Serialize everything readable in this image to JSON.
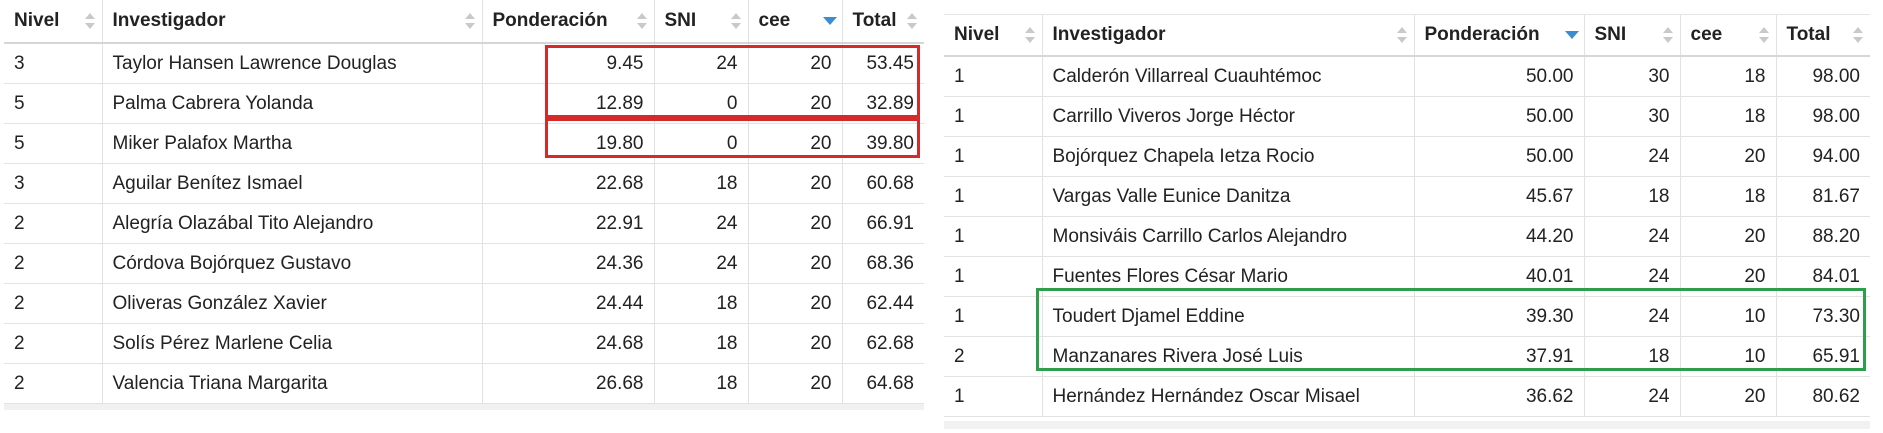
{
  "left_table": {
    "columns": [
      {
        "label": "Nivel",
        "sort": "none"
      },
      {
        "label": "Investigador",
        "sort": "none"
      },
      {
        "label": "Ponderación",
        "sort": "none"
      },
      {
        "label": "SNI",
        "sort": "none"
      },
      {
        "label": "cee",
        "sort": "desc"
      },
      {
        "label": "Total",
        "sort": "none"
      }
    ],
    "rows": [
      {
        "nivel": "3",
        "investigador": "Taylor Hansen Lawrence Douglas",
        "ponderacion": "9.45",
        "sni": "24",
        "cee": "20",
        "total": "53.45"
      },
      {
        "nivel": "5",
        "investigador": "Palma Cabrera Yolanda",
        "ponderacion": "12.89",
        "sni": "0",
        "cee": "20",
        "total": "32.89"
      },
      {
        "nivel": "5",
        "investigador": "Miker Palafox Martha",
        "ponderacion": "19.80",
        "sni": "0",
        "cee": "20",
        "total": "39.80"
      },
      {
        "nivel": "3",
        "investigador": "Aguilar Benítez Ismael",
        "ponderacion": "22.68",
        "sni": "18",
        "cee": "20",
        "total": "60.68"
      },
      {
        "nivel": "2",
        "investigador": "Alegría Olazábal Tito Alejandro",
        "ponderacion": "22.91",
        "sni": "24",
        "cee": "20",
        "total": "66.91"
      },
      {
        "nivel": "2",
        "investigador": "Córdova Bojórquez Gustavo",
        "ponderacion": "24.36",
        "sni": "24",
        "cee": "20",
        "total": "68.36"
      },
      {
        "nivel": "2",
        "investigador": "Oliveras González Xavier",
        "ponderacion": "24.44",
        "sni": "18",
        "cee": "20",
        "total": "62.44"
      },
      {
        "nivel": "2",
        "investigador": "Solís Pérez Marlene Celia",
        "ponderacion": "24.68",
        "sni": "18",
        "cee": "20",
        "total": "62.68"
      },
      {
        "nivel": "2",
        "investigador": "Valencia Triana Margarita",
        "ponderacion": "26.68",
        "sni": "18",
        "cee": "20",
        "total": "64.68"
      }
    ]
  },
  "right_table": {
    "columns": [
      {
        "label": "Nivel",
        "sort": "none"
      },
      {
        "label": "Investigador",
        "sort": "none"
      },
      {
        "label": "Ponderación",
        "sort": "desc"
      },
      {
        "label": "SNI",
        "sort": "none"
      },
      {
        "label": "cee",
        "sort": "none"
      },
      {
        "label": "Total",
        "sort": "none"
      }
    ],
    "rows": [
      {
        "nivel": "1",
        "investigador": "Calderón Villarreal Cuauhtémoc",
        "ponderacion": "50.00",
        "sni": "30",
        "cee": "18",
        "total": "98.00"
      },
      {
        "nivel": "1",
        "investigador": "Carrillo Viveros Jorge Héctor",
        "ponderacion": "50.00",
        "sni": "30",
        "cee": "18",
        "total": "98.00"
      },
      {
        "nivel": "1",
        "investigador": "Bojórquez Chapela Ietza Rocio",
        "ponderacion": "50.00",
        "sni": "24",
        "cee": "20",
        "total": "94.00"
      },
      {
        "nivel": "1",
        "investigador": "Vargas Valle Eunice Danitza",
        "ponderacion": "45.67",
        "sni": "18",
        "cee": "18",
        "total": "81.67"
      },
      {
        "nivel": "1",
        "investigador": "Monsiváis Carrillo Carlos Alejandro",
        "ponderacion": "44.20",
        "sni": "24",
        "cee": "20",
        "total": "88.20"
      },
      {
        "nivel": "1",
        "investigador": "Fuentes Flores César Mario",
        "ponderacion": "40.01",
        "sni": "24",
        "cee": "20",
        "total": "84.01"
      },
      {
        "nivel": "1",
        "investigador": "Toudert Djamel Eddine",
        "ponderacion": "39.30",
        "sni": "24",
        "cee": "10",
        "total": "73.30"
      },
      {
        "nivel": "2",
        "investigador": "Manzanares Rivera José Luis",
        "ponderacion": "37.91",
        "sni": "18",
        "cee": "10",
        "total": "65.91"
      },
      {
        "nivel": "1",
        "investigador": "Hernández Hernández Oscar Misael",
        "ponderacion": "36.62",
        "sni": "24",
        "cee": "20",
        "total": "80.62"
      }
    ]
  },
  "colors": {
    "highlight_red": "#d42a2a",
    "highlight_green": "#2e9e4b",
    "sort_active": "#3c8dcf"
  }
}
